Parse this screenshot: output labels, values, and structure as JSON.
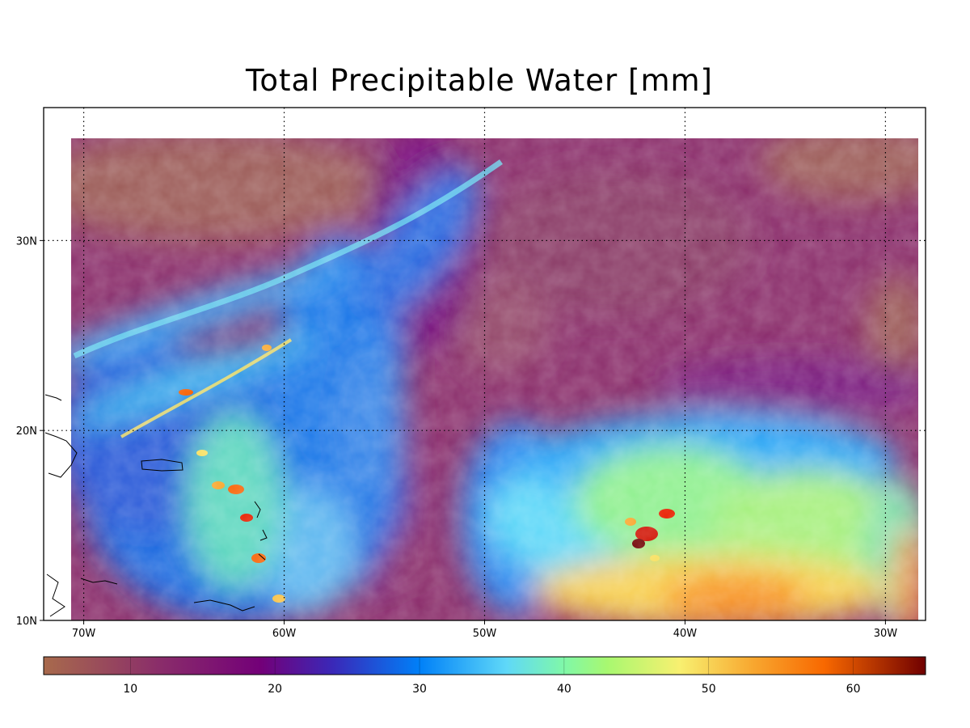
{
  "chart_data": {
    "type": "heatmap",
    "title": "Total Precipitable Water [mm]",
    "units": "mm",
    "map_projection": "lat-lon",
    "lon_range": [
      -72,
      -28
    ],
    "lat_range": [
      10,
      37
    ],
    "data_region": {
      "lon": [
        -70.6,
        -28.4
      ],
      "lat": [
        10,
        35.3
      ]
    },
    "x_ticks": [
      {
        "value": -70,
        "label": "70W"
      },
      {
        "value": -60,
        "label": "60W"
      },
      {
        "value": -50,
        "label": "50W"
      },
      {
        "value": -40,
        "label": "40W"
      },
      {
        "value": -30,
        "label": "30W"
      }
    ],
    "y_ticks": [
      {
        "value": 10,
        "label": "10N"
      },
      {
        "value": 20,
        "label": "20N"
      },
      {
        "value": 30,
        "label": "30N"
      }
    ],
    "grid": "dotted",
    "colorbar": {
      "orientation": "horizontal",
      "placement": "bottom",
      "range": [
        4,
        65
      ],
      "ticks": [
        {
          "value": 10,
          "label": "10"
        },
        {
          "value": 20,
          "label": "20"
        },
        {
          "value": 30,
          "label": "30"
        },
        {
          "value": 40,
          "label": "40"
        },
        {
          "value": 50,
          "label": "50"
        },
        {
          "value": 60,
          "label": "60"
        }
      ],
      "stops": [
        {
          "value": 4,
          "color": "#a86a4c"
        },
        {
          "value": 12,
          "color": "#8a2d6a"
        },
        {
          "value": 19,
          "color": "#730078"
        },
        {
          "value": 24,
          "color": "#3a28b8"
        },
        {
          "value": 30,
          "color": "#0080f8"
        },
        {
          "value": 36,
          "color": "#5fd8f8"
        },
        {
          "value": 40,
          "color": "#80f8a8"
        },
        {
          "value": 43,
          "color": "#a8f870"
        },
        {
          "value": 48,
          "color": "#f8f070"
        },
        {
          "value": 53,
          "color": "#f8a830"
        },
        {
          "value": 58,
          "color": "#f86800"
        },
        {
          "value": 65,
          "color": "#700000"
        }
      ]
    },
    "field_features": [
      {
        "name": "dry subtropical background",
        "lon": -45,
        "lat": 28,
        "value": 12
      },
      {
        "name": "northwest dry region",
        "lon": -65,
        "lat": 32,
        "value": 9
      },
      {
        "name": "moist filament",
        "lon_start": -70,
        "lat_start": 24,
        "lon_end": -48,
        "lat_end": 33,
        "value": 32
      },
      {
        "name": "Caribbean moist band",
        "lon": -62,
        "lat": 17,
        "value": 45
      },
      {
        "name": "tropical disturbance core",
        "lon": -42,
        "lat": 14.5,
        "value": 58
      },
      {
        "name": "southern moist region",
        "lon": -37,
        "lat": 11,
        "value": 53
      },
      {
        "name": "eastern moist edge",
        "lon": -29,
        "lat": 13,
        "value": 50
      }
    ]
  }
}
